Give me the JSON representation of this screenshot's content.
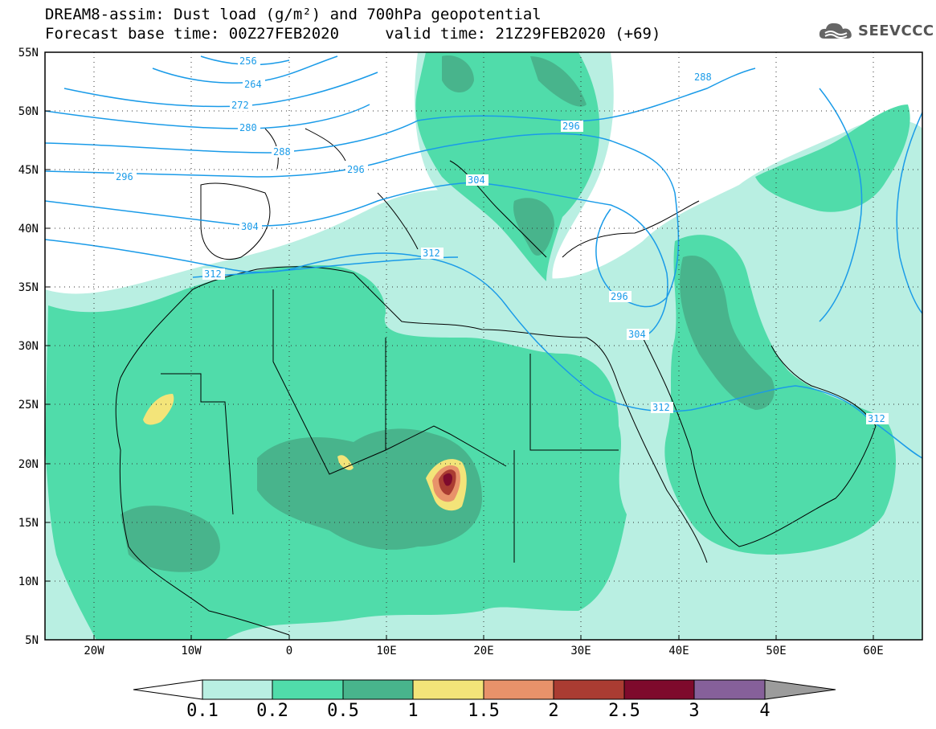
{
  "header": {
    "title_line1": "DREAM8-assim: Dust load (g/m²) and 700hPa geopotential",
    "title_line2": "Forecast base time: 00Z27FEB2020     valid time: 21Z29FEB2020 (+69)",
    "logo_text": "SEEVCCC"
  },
  "map": {
    "lat_labels": [
      "55N",
      "50N",
      "45N",
      "40N",
      "35N",
      "30N",
      "25N",
      "20N",
      "15N",
      "10N",
      "5N"
    ],
    "lon_labels": [
      "20W",
      "10W",
      "0",
      "10E",
      "20E",
      "30E",
      "40E",
      "50E",
      "60E"
    ],
    "lat_range": [
      5,
      55
    ],
    "lon_range": [
      -25,
      65
    ],
    "grid": "dotted",
    "contour_color": "#1a9be8",
    "contour_labels": [
      "256",
      "264",
      "272",
      "280",
      "288",
      "296",
      "296",
      "304",
      "304",
      "312",
      "312",
      "288",
      "296",
      "304",
      "312",
      "312",
      "296"
    ]
  },
  "colorbar": {
    "labels": [
      "0.1",
      "0.2",
      "0.5",
      "1",
      "1.5",
      "2",
      "2.5",
      "3",
      "4"
    ],
    "colors": [
      "#ffffff",
      "#b9efe2",
      "#50dcaa",
      "#48b48c",
      "#f3e479",
      "#e8926a",
      "#aa3c32",
      "#7e0a2c",
      "#86609a",
      "#9c9c9c"
    ]
  }
}
